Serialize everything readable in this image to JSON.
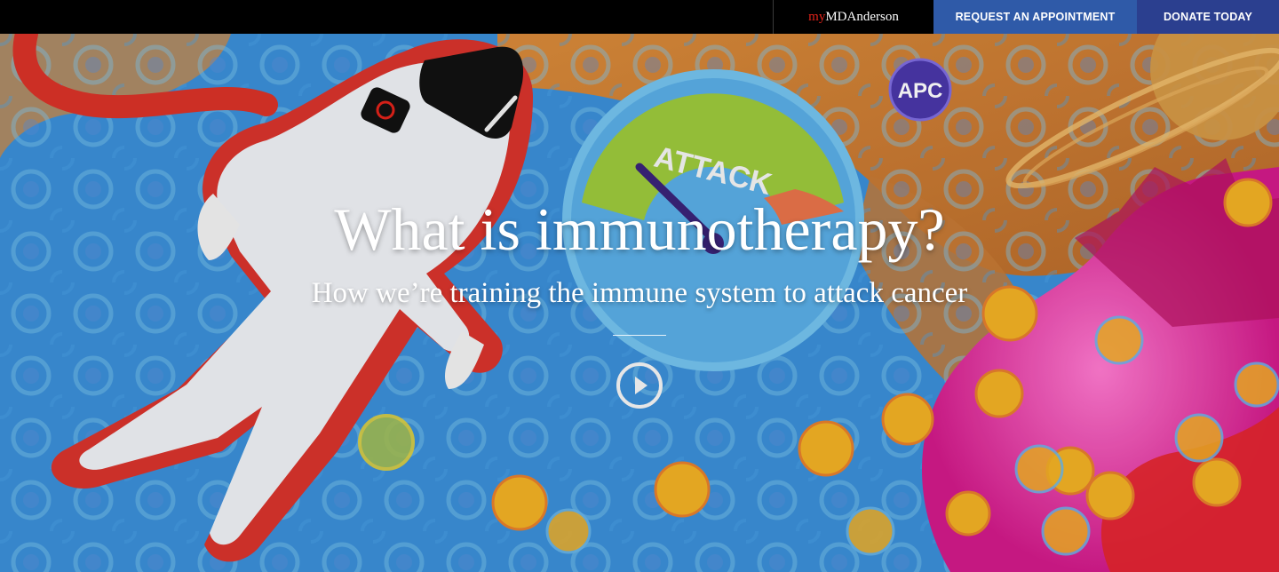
{
  "header": {
    "portal_prefix": "my",
    "portal_name": "MDAnderson",
    "request_label": "REQUEST AN APPOINTMENT",
    "donate_label": "DONATE TODAY"
  },
  "hero": {
    "title": "What is immunotherapy?",
    "subtitle": "How we’re training the immune system to attack cancer",
    "play_icon": "play-circle-icon",
    "art": {
      "gauge_word": "ATTACK",
      "badge_text": "APC"
    }
  },
  "colors": {
    "request_bg": "#2f5aa8",
    "donate_bg": "#2b3f8f",
    "brand_red": "#e2231a"
  }
}
